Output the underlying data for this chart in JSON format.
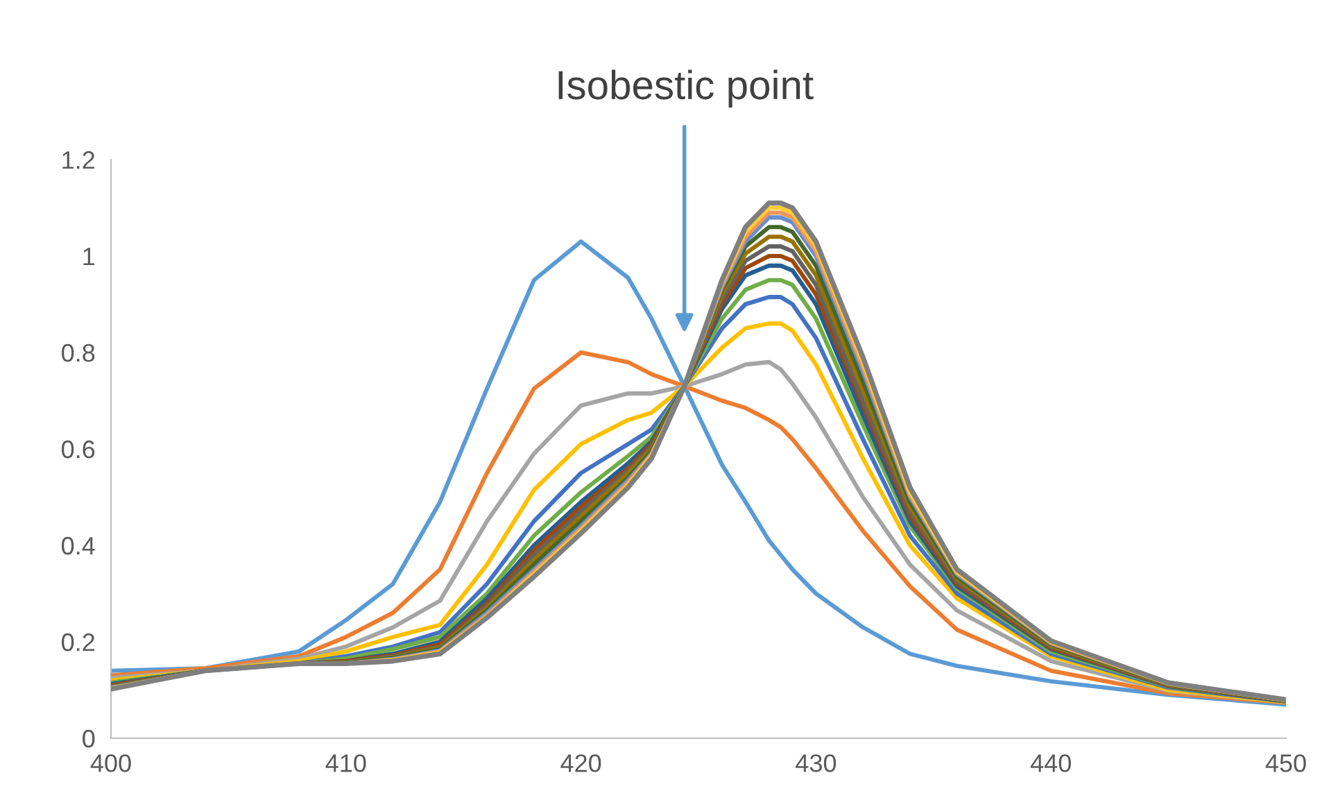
{
  "chart_data": {
    "type": "line",
    "x": [
      400,
      404,
      408,
      410,
      412,
      414,
      416,
      418,
      420,
      422,
      423,
      424.4,
      426,
      427,
      428,
      428.5,
      429,
      430,
      432,
      434,
      436,
      440,
      445,
      450
    ],
    "series": [
      {
        "color": "#5b9bd5",
        "values": [
          0.14,
          0.145,
          0.18,
          0.245,
          0.32,
          0.49,
          0.725,
          0.95,
          1.03,
          0.955,
          0.87,
          0.73,
          0.567,
          0.49,
          0.41,
          0.38,
          0.35,
          0.3,
          0.23,
          0.175,
          0.15,
          0.118,
          0.09,
          0.07
        ]
      },
      {
        "color": "#ed7d31",
        "values": [
          0.13,
          0.145,
          0.17,
          0.21,
          0.26,
          0.35,
          0.55,
          0.725,
          0.8,
          0.78,
          0.755,
          0.73,
          0.7,
          0.685,
          0.66,
          0.645,
          0.62,
          0.56,
          0.43,
          0.315,
          0.225,
          0.14,
          0.093,
          0.074
        ]
      },
      {
        "color": "#a5a5a5",
        "values": [
          0.125,
          0.14,
          0.165,
          0.19,
          0.23,
          0.285,
          0.45,
          0.59,
          0.69,
          0.715,
          0.715,
          0.73,
          0.755,
          0.775,
          0.78,
          0.765,
          0.735,
          0.665,
          0.5,
          0.36,
          0.265,
          0.16,
          0.098,
          0.075
        ]
      },
      {
        "color": "#ffc000",
        "values": [
          0.12,
          0.14,
          0.16,
          0.18,
          0.21,
          0.235,
          0.36,
          0.515,
          0.61,
          0.66,
          0.675,
          0.73,
          0.81,
          0.85,
          0.86,
          0.86,
          0.845,
          0.775,
          0.58,
          0.4,
          0.29,
          0.17,
          0.1,
          0.075
        ]
      },
      {
        "color": "#4472c4",
        "values": [
          0.115,
          0.14,
          0.155,
          0.17,
          0.19,
          0.22,
          0.32,
          0.45,
          0.55,
          0.61,
          0.64,
          0.73,
          0.85,
          0.9,
          0.915,
          0.915,
          0.9,
          0.83,
          0.62,
          0.42,
          0.3,
          0.175,
          0.105,
          0.076
        ]
      },
      {
        "color": "#70ad47",
        "values": [
          0.115,
          0.14,
          0.155,
          0.165,
          0.185,
          0.21,
          0.3,
          0.42,
          0.51,
          0.585,
          0.625,
          0.73,
          0.87,
          0.93,
          0.95,
          0.95,
          0.94,
          0.87,
          0.65,
          0.44,
          0.31,
          0.18,
          0.107,
          0.077
        ]
      },
      {
        "color": "#255e91",
        "values": [
          0.112,
          0.14,
          0.155,
          0.16,
          0.175,
          0.2,
          0.29,
          0.4,
          0.49,
          0.57,
          0.615,
          0.73,
          0.89,
          0.96,
          0.98,
          0.98,
          0.97,
          0.9,
          0.67,
          0.45,
          0.315,
          0.185,
          0.108,
          0.077
        ]
      },
      {
        "color": "#9e480e",
        "values": [
          0.11,
          0.14,
          0.155,
          0.16,
          0.172,
          0.195,
          0.28,
          0.39,
          0.48,
          0.56,
          0.61,
          0.73,
          0.9,
          0.975,
          1.0,
          1.0,
          0.99,
          0.92,
          0.69,
          0.46,
          0.32,
          0.187,
          0.109,
          0.077
        ]
      },
      {
        "color": "#636363",
        "values": [
          0.108,
          0.14,
          0.155,
          0.158,
          0.17,
          0.19,
          0.275,
          0.38,
          0.47,
          0.555,
          0.605,
          0.73,
          0.91,
          0.99,
          1.02,
          1.02,
          1.01,
          0.94,
          0.7,
          0.47,
          0.325,
          0.19,
          0.11,
          0.078
        ]
      },
      {
        "color": "#997300",
        "values": [
          0.107,
          0.14,
          0.155,
          0.157,
          0.168,
          0.188,
          0.27,
          0.37,
          0.46,
          0.55,
          0.6,
          0.73,
          0.92,
          1.005,
          1.04,
          1.04,
          1.03,
          0.96,
          0.72,
          0.48,
          0.33,
          0.192,
          0.111,
          0.078
        ]
      },
      {
        "color": "#43682b",
        "values": [
          0.106,
          0.14,
          0.155,
          0.156,
          0.166,
          0.185,
          0.265,
          0.36,
          0.45,
          0.54,
          0.595,
          0.73,
          0.93,
          1.02,
          1.06,
          1.06,
          1.05,
          0.98,
          0.74,
          0.49,
          0.335,
          0.195,
          0.112,
          0.078
        ]
      },
      {
        "color": "#698ed0",
        "values": [
          0.105,
          0.14,
          0.155,
          0.155,
          0.164,
          0.182,
          0.26,
          0.35,
          0.44,
          0.535,
          0.59,
          0.73,
          0.935,
          1.03,
          1.08,
          1.08,
          1.07,
          1.0,
          0.76,
          0.5,
          0.34,
          0.197,
          0.113,
          0.079
        ]
      },
      {
        "color": "#f1975a",
        "values": [
          0.104,
          0.14,
          0.155,
          0.155,
          0.163,
          0.18,
          0.255,
          0.345,
          0.435,
          0.53,
          0.588,
          0.73,
          0.94,
          1.04,
          1.09,
          1.09,
          1.08,
          1.01,
          0.77,
          0.505,
          0.343,
          0.198,
          0.113,
          0.079
        ]
      },
      {
        "color": "#ffcd33",
        "values": [
          0.103,
          0.14,
          0.155,
          0.155,
          0.162,
          0.178,
          0.252,
          0.34,
          0.43,
          0.525,
          0.585,
          0.73,
          0.945,
          1.05,
          1.1,
          1.1,
          1.09,
          1.02,
          0.78,
          0.51,
          0.345,
          0.2,
          0.114,
          0.079
        ]
      },
      {
        "color": "#7f7f7f",
        "values": [
          0.102,
          0.14,
          0.155,
          0.155,
          0.16,
          0.175,
          0.25,
          0.335,
          0.425,
          0.52,
          0.58,
          0.73,
          0.95,
          1.06,
          1.11,
          1.11,
          1.1,
          1.03,
          0.79,
          0.52,
          0.35,
          0.202,
          0.115,
          0.08
        ]
      }
    ],
    "xlim": [
      400,
      450
    ],
    "xticks": [
      400,
      410,
      420,
      430,
      440,
      450
    ],
    "ylim": [
      0,
      1.2
    ],
    "yticks": [
      0,
      {
        "value": 0.2,
        "label": "0.2"
      },
      {
        "value": 0.4,
        "label": "0.4"
      },
      {
        "value": 0.6,
        "label": "0.6"
      },
      {
        "value": 0.8,
        "label": "0.8"
      },
      {
        "value": 1,
        "label": "1"
      },
      {
        "value": 1.2,
        "label": "1.2"
      }
    ],
    "annotations": [
      "Isobestic point"
    ],
    "marker": "none",
    "line_style": "solid"
  }
}
